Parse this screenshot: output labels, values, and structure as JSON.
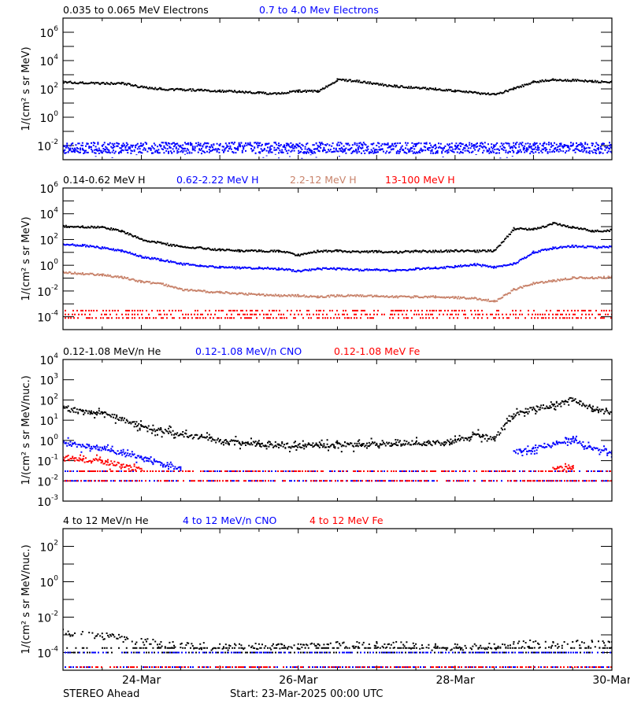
{
  "footer": {
    "spacecraft": "STEREO Ahead",
    "start": "Start: 23-Mar-2025 00:00 UTC"
  },
  "x_axis": {
    "range": [
      "2025-03-23 00:00",
      "2025-03-30 00:00"
    ],
    "tick_labels": [
      "24-Mar",
      "26-Mar",
      "28-Mar",
      "30-Mar"
    ],
    "tick_dates": [
      "2025-03-24",
      "2025-03-26",
      "2025-03-28",
      "2025-03-30"
    ],
    "minor_tick_interval_hours": 12
  },
  "chart_data": [
    {
      "type": "scatter",
      "yscale": "log",
      "ylim": [
        0.001,
        10000000
      ],
      "ylabel": "1/(cm² s sr MeV)",
      "yticks": [
        1000000,
        10000,
        100,
        1,
        0.01
      ],
      "ytick_exponents": [
        "6",
        "4",
        "2",
        "0",
        "-2"
      ],
      "minor_yticks_per_decade": 1,
      "times": [
        "03-23 00",
        "03-23 06",
        "03-23 12",
        "03-23 18",
        "03-24 00",
        "03-24 06",
        "03-24 12",
        "03-24 18",
        "03-25 00",
        "03-25 06",
        "03-25 12",
        "03-25 18",
        "03-26 00",
        "03-26 06",
        "03-26 12",
        "03-26 18",
        "03-27 00",
        "03-27 06",
        "03-27 12",
        "03-27 18",
        "03-28 00",
        "03-28 06",
        "03-28 12",
        "03-28 18",
        "03-29 00",
        "03-29 06",
        "03-29 12",
        "03-29 18",
        "03-30 00"
      ],
      "series": [
        {
          "name": "0.035 to 0.065 MeV Electrons",
          "color": "#000000",
          "style": "trace",
          "values": [
            350,
            300,
            270,
            280,
            150,
            110,
            100,
            90,
            80,
            70,
            60,
            50,
            80,
            75,
            500,
            400,
            250,
            170,
            130,
            110,
            80,
            60,
            45,
            120,
            350,
            500,
            450,
            380,
            350
          ]
        },
        {
          "name": "0.7 to 4.0 Mev Electrons",
          "color": "#0000ff",
          "style": "noise",
          "values": [
            0.01,
            0.01,
            0.01,
            0.01,
            0.01,
            0.01,
            0.01,
            0.01,
            0.01,
            0.01,
            0.01,
            0.01,
            0.01,
            0.01,
            0.01,
            0.01,
            0.01,
            0.01,
            0.01,
            0.01,
            0.01,
            0.01,
            0.01,
            0.01,
            0.01,
            0.01,
            0.01,
            0.01,
            0.01
          ]
        }
      ]
    },
    {
      "type": "scatter",
      "yscale": "log",
      "ylim": [
        1e-05,
        1000000
      ],
      "ylabel": "1/(cm² s sr MeV)",
      "yticks": [
        1000000,
        10000,
        100,
        1,
        0.01,
        0.0001
      ],
      "ytick_exponents": [
        "6",
        "4",
        "2",
        "0",
        "-2",
        "-4"
      ],
      "minor_yticks_per_decade": 1,
      "series": [
        {
          "name": "0.14-0.62 MeV H",
          "color": "#000000",
          "style": "trace",
          "values": [
            1200,
            1100,
            1000,
            500,
            110,
            60,
            30,
            25,
            18,
            15,
            15,
            14,
            7,
            14,
            15,
            12,
            13,
            12,
            14,
            14,
            15,
            14,
            15,
            800,
            700,
            2000,
            1000,
            500,
            600
          ]
        },
        {
          "name": "0.62-2.22 MeV H",
          "color": "#0000ff",
          "style": "trace",
          "values": [
            45,
            40,
            25,
            15,
            5,
            3,
            1.5,
            1.0,
            0.8,
            0.7,
            0.7,
            0.6,
            0.4,
            0.6,
            0.6,
            0.5,
            0.5,
            0.45,
            0.6,
            0.7,
            0.9,
            1.3,
            0.8,
            1.5,
            12,
            25,
            35,
            28,
            30
          ]
        },
        {
          "name": "2.2-12 MeV H",
          "color": "#c8826a",
          "style": "trace",
          "values": [
            0.33,
            0.25,
            0.2,
            0.13,
            0.06,
            0.04,
            0.015,
            0.011,
            0.009,
            0.007,
            0.006,
            0.005,
            0.005,
            0.004,
            0.005,
            0.005,
            0.0045,
            0.004,
            0.004,
            0.004,
            0.0035,
            0.003,
            0.0018,
            0.015,
            0.045,
            0.07,
            0.12,
            0.12,
            0.14
          ]
        },
        {
          "name": "13-100 MeV H",
          "color": "#ff0000",
          "style": "floor",
          "levels": [
            0.0003,
            0.00015,
            8e-05
          ]
        }
      ]
    },
    {
      "type": "scatter",
      "yscale": "log",
      "ylim": [
        0.001,
        10000
      ],
      "ylabel": "1/(cm² s sr MeV/nuc.)",
      "yticks": [
        10000,
        1000,
        100,
        10,
        1,
        0.1,
        0.01,
        0.001
      ],
      "ytick_exponents": [
        "4",
        "3",
        "2",
        "1",
        "0",
        "-1",
        "-2",
        "-3"
      ],
      "minor_yticks_per_decade": 0,
      "series": [
        {
          "name": "0.12-1.08 MeV/n He",
          "color": "#000000",
          "style": "trace",
          "values": [
            40,
            30,
            25,
            12,
            5,
            3.5,
            2.0,
            1.5,
            1.0,
            0.8,
            0.7,
            0.6,
            0.6,
            0.6,
            0.7,
            0.7,
            0.7,
            0.8,
            0.8,
            0.8,
            1.0,
            2.0,
            1.5,
            20,
            40,
            60,
            120,
            35,
            25
          ]
        },
        {
          "name": "0.12-1.08 MeV/n CNO",
          "color": "#0000ff",
          "style": "trace",
          "values": [
            0.8,
            0.6,
            0.45,
            0.25,
            0.15,
            0.08,
            0.04,
            null,
            null,
            null,
            null,
            null,
            null,
            null,
            null,
            null,
            null,
            null,
            null,
            null,
            null,
            null,
            null,
            0.3,
            0.4,
            0.7,
            1.2,
            0.4,
            0.3
          ],
          "levels": [
            0.03,
            0.01
          ]
        },
        {
          "name": "0.12-1.08 MeV Fe",
          "color": "#ff0000",
          "style": "trace",
          "values": [
            0.15,
            0.12,
            0.1,
            0.06,
            0.04,
            null,
            null,
            null,
            null,
            null,
            null,
            null,
            null,
            null,
            null,
            null,
            null,
            null,
            null,
            null,
            null,
            null,
            null,
            null,
            null,
            0.045,
            0.05,
            null,
            null
          ],
          "levels": [
            0.03,
            0.01
          ]
        }
      ]
    },
    {
      "type": "scatter",
      "yscale": "log",
      "ylim": [
        1e-05,
        1000
      ],
      "ylabel": "1/(cm² s sr MeV/nuc.)",
      "yticks": [
        100,
        1,
        0.01,
        0.0001
      ],
      "ytick_exponents": [
        "2",
        "0",
        "-2",
        "-4"
      ],
      "minor_yticks_per_decade": 1,
      "series": [
        {
          "name": "4 to 12 MeV/n He",
          "color": "#000000",
          "style": "sparse",
          "values": [
            0.002,
            0.0015,
            0.0012,
            0.0008,
            0.0006,
            0.0004,
            0.0003,
            0.0003,
            0.0003,
            0.0003,
            0.0003,
            0.0003,
            0.0003,
            0.0003,
            0.0004,
            0.0004,
            0.0004,
            0.0004,
            0.0003,
            0.0003,
            0.0003,
            0.0003,
            0.0003,
            0.0004,
            0.0004,
            0.0004,
            0.0004,
            0.0004,
            0.0004
          ],
          "levels": [
            0.0001
          ]
        },
        {
          "name": "4 to 12 MeV/n CNO",
          "color": "#0000ff",
          "style": "floor",
          "levels": [
            0.0001,
            1.5e-05
          ]
        },
        {
          "name": "4 to 12 MeV Fe",
          "color": "#ff0000",
          "style": "floor",
          "levels": [
            1.5e-05
          ]
        }
      ]
    }
  ]
}
